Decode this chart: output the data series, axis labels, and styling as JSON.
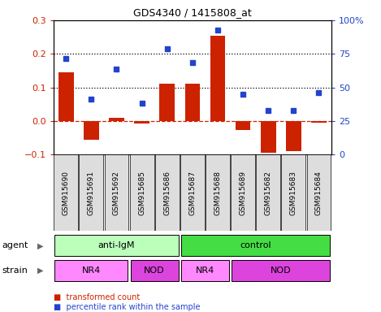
{
  "title": "GDS4340 / 1415808_at",
  "samples": [
    "GSM915690",
    "GSM915691",
    "GSM915692",
    "GSM915685",
    "GSM915686",
    "GSM915687",
    "GSM915688",
    "GSM915689",
    "GSM915682",
    "GSM915683",
    "GSM915684"
  ],
  "bar_values": [
    0.145,
    -0.055,
    0.01,
    -0.008,
    0.11,
    0.11,
    0.255,
    -0.027,
    -0.095,
    -0.09,
    -0.005
  ],
  "dot_values": [
    0.185,
    0.065,
    0.155,
    0.053,
    0.215,
    0.175,
    0.27,
    0.08,
    0.03,
    0.03,
    0.085
  ],
  "bar_color": "#cc2200",
  "dot_color": "#2244cc",
  "ylim": [
    -0.1,
    0.3
  ],
  "y2lim": [
    0,
    100
  ],
  "yticks": [
    -0.1,
    0.0,
    0.1,
    0.2,
    0.3
  ],
  "y2ticks": [
    0,
    25,
    50,
    75,
    100
  ],
  "y2ticklabels": [
    "0",
    "25",
    "50",
    "75",
    "100%"
  ],
  "hlines": [
    0.1,
    0.2
  ],
  "agent_labels": [
    {
      "label": "anti-IgM",
      "start": 0,
      "end": 5,
      "color": "#bbffbb"
    },
    {
      "label": "control",
      "start": 5,
      "end": 11,
      "color": "#44dd44"
    }
  ],
  "strain_labels": [
    {
      "label": "NR4",
      "start": 0,
      "end": 3,
      "color": "#ff88ff"
    },
    {
      "label": "NOD",
      "start": 3,
      "end": 5,
      "color": "#dd44dd"
    },
    {
      "label": "NR4",
      "start": 5,
      "end": 7,
      "color": "#ff88ff"
    },
    {
      "label": "NOD",
      "start": 7,
      "end": 11,
      "color": "#dd44dd"
    }
  ],
  "legend_items": [
    {
      "label": "transformed count",
      "color": "#cc2200"
    },
    {
      "label": "percentile rank within the sample",
      "color": "#2244cc"
    }
  ],
  "agent_label_text": "agent",
  "strain_label_text": "strain",
  "bar_width": 0.6,
  "tick_bg_color": "#dddddd",
  "fig_bg": "#ffffff"
}
